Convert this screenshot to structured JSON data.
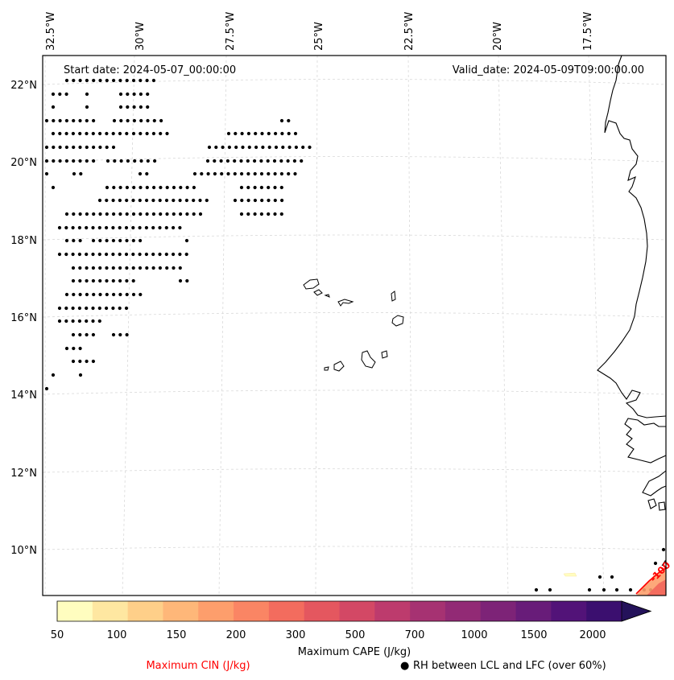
{
  "map": {
    "start_date": "Start date: 2024-05-07_00:00:00",
    "valid_date": "Valid_date: 2024-05-09T09:00:00.00",
    "lon_labels": [
      "32.5°W",
      "30°W",
      "27.5°W",
      "25°W",
      "22.5°W",
      "20°W",
      "17.5°W"
    ],
    "lat_labels": [
      "22°N",
      "20°N",
      "18°N",
      "16°N",
      "14°N",
      "12°N",
      "10°N"
    ],
    "cin_contour_label": "-100",
    "colors": {
      "coastline": "#000000",
      "gridline": "#d9d9d9",
      "cin_contour": "#ff0000",
      "dot": "#000000"
    }
  },
  "colorbar": {
    "tick_labels": [
      "50",
      "100",
      "150",
      "200",
      "300",
      "500",
      "700",
      "1000",
      "1500",
      "2000"
    ],
    "label": "Maximum CAPE (J/kg)",
    "colors": [
      "#fffdbf",
      "#fee7a1",
      "#fecf89",
      "#feb779",
      "#fd9e6c",
      "#fa8564",
      "#f36c5e",
      "#e4575f",
      "#d34865",
      "#bd3b6d",
      "#a63272",
      "#922a75",
      "#7d2377",
      "#681c79",
      "#521378",
      "#3b0f6f",
      "#24125a"
    ]
  },
  "legend": {
    "cin_label": "Maximum CIN (J/kg)",
    "rh_label": "RH between LCL and LFC (over 60%)",
    "rh_marker": "●"
  }
}
